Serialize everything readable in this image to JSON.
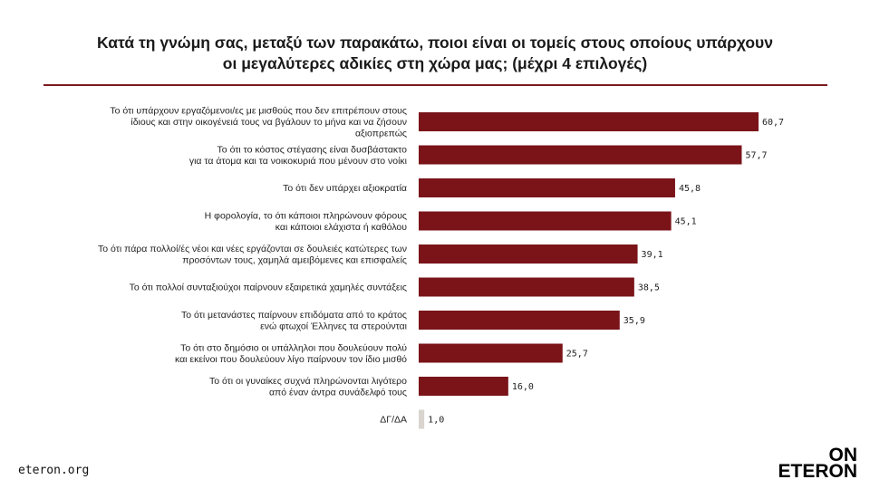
{
  "title": {
    "line1": "Κατά τη γνώμη σας, μεταξύ των παρακάτω, ποιοι είναι οι τομείς στους οποίους υπάρχουν",
    "line2": "οι μεγαλύτερες αδικίες στη χώρα μας;  (μέχρι 4 επιλογές)"
  },
  "footer": {
    "url": "eteron.org"
  },
  "logo": {
    "line1": "ON",
    "line2": "ETERON"
  },
  "colors": {
    "bar": "#7a1419",
    "bar_na": "#d9d4ce",
    "rule": "#7a1a1e"
  },
  "chart_data": {
    "type": "bar",
    "orientation": "horizontal",
    "categories": [
      [
        "Το ότι υπάρχουν εργαζόμενοι/ες με μισθούς που δεν επιτρέπουν στους",
        "ίδιους και στην οικογένειά τους να βγάλουν το μήνα και να ζήσουν",
        "αξιοπρεπώς"
      ],
      [
        "Το ότι το κόστος στέγασης είναι δυσβάστακτο",
        "για τα άτομα και τα νοικοκυριά που μένουν στο νοίκι"
      ],
      [
        "Το ότι δεν υπάρχει αξιοκρατία"
      ],
      [
        "Η φορολογία, το ότι κάποιοι πληρώνουν φόρους",
        "και κάποιοι ελάχιστα ή καθόλου"
      ],
      [
        "Το ότι πάρα πολλοί/ές νέοι και νέες εργάζονται σε δουλειές κατώτερες των",
        "προσόντων τους, χαμηλά αμειβόμενες και επισφαλείς"
      ],
      [
        "Το ότι πολλοί συνταξιούχοι παίρνουν εξαιρετικά χαμηλές συντάξεις"
      ],
      [
        "Το ότι μετανάστες παίρνουν επιδόματα από το κράτος",
        "ενώ φτωχοί Έλληνες τα στερούνται"
      ],
      [
        "Το ότι στο δημόσιο οι υπάλληλοι που δουλεύουν πολύ",
        "και εκείνοι που δουλεύουν λίγο παίρνουν τον ίδιο μισθό"
      ],
      [
        "Το ότι οι γυναίκες συχνά πληρώνονται λιγότερο",
        "από έναν άντρα συνάδελφό τους"
      ],
      [
        "ΔΓ/ΔΑ"
      ]
    ],
    "values": [
      60.7,
      57.7,
      45.8,
      45.1,
      39.1,
      38.5,
      35.9,
      25.7,
      16.0,
      1.0
    ],
    "value_labels": [
      "60,7",
      "57,7",
      "45,8",
      "45,1",
      "39,1",
      "38,5",
      "35,9",
      "25,7",
      "16,0",
      "1,0"
    ],
    "xlim": [
      0,
      60.7
    ],
    "grid": false,
    "legend": "none"
  }
}
